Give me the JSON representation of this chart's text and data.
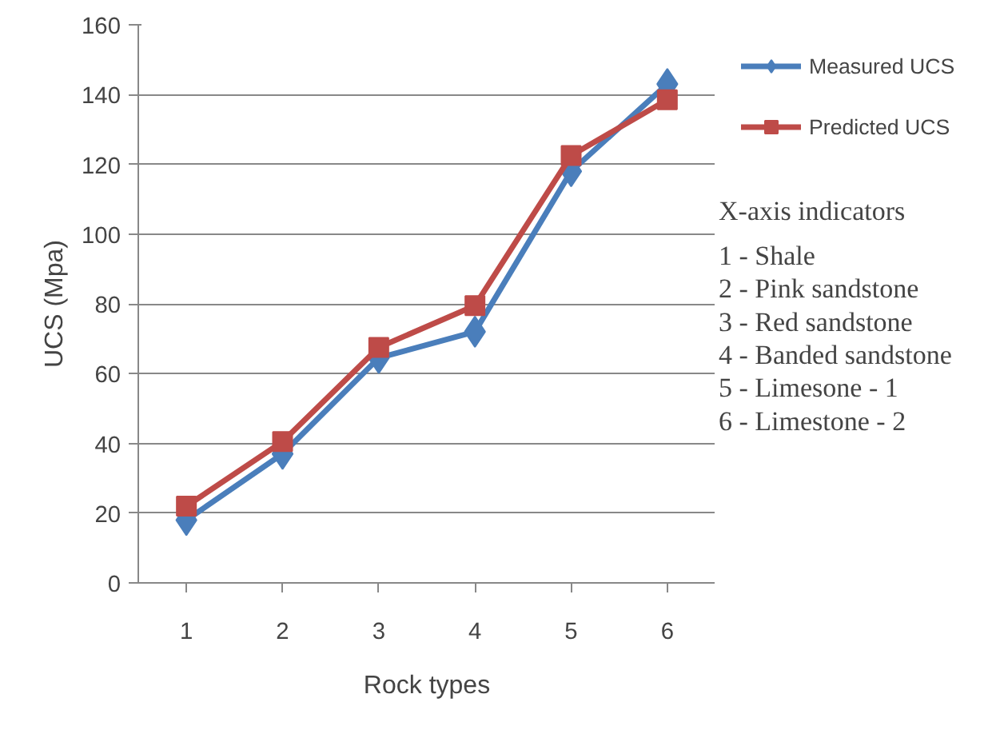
{
  "chart_data": {
    "type": "line",
    "xlabel": "Rock types",
    "ylabel": "UCS (Mpa)",
    "categories": [
      "1",
      "2",
      "3",
      "4",
      "5",
      "6"
    ],
    "series": [
      {
        "name": "Measured UCS",
        "color": "#4a7ebb",
        "marker": "diamond",
        "values": [
          18,
          37,
          64.5,
          72,
          118,
          143
        ]
      },
      {
        "name": "Predicted UCS",
        "color": "#be4b48",
        "marker": "square",
        "values": [
          22,
          40.5,
          67.5,
          79.5,
          122.5,
          138.5
        ]
      }
    ],
    "ylim": [
      0,
      160
    ],
    "yticks": [
      0,
      20,
      40,
      60,
      80,
      100,
      120,
      140,
      160
    ],
    "grid": "y",
    "legend": "top right",
    "line_style": "solid",
    "annotations": [
      "X-axis indicators",
      "1 - Shale",
      "2 - Pink sandstone",
      "3 - Red sandstone",
      "4 - Banded sandstone",
      "5 - Limesone - 1",
      "6 - Limestone - 2"
    ]
  }
}
